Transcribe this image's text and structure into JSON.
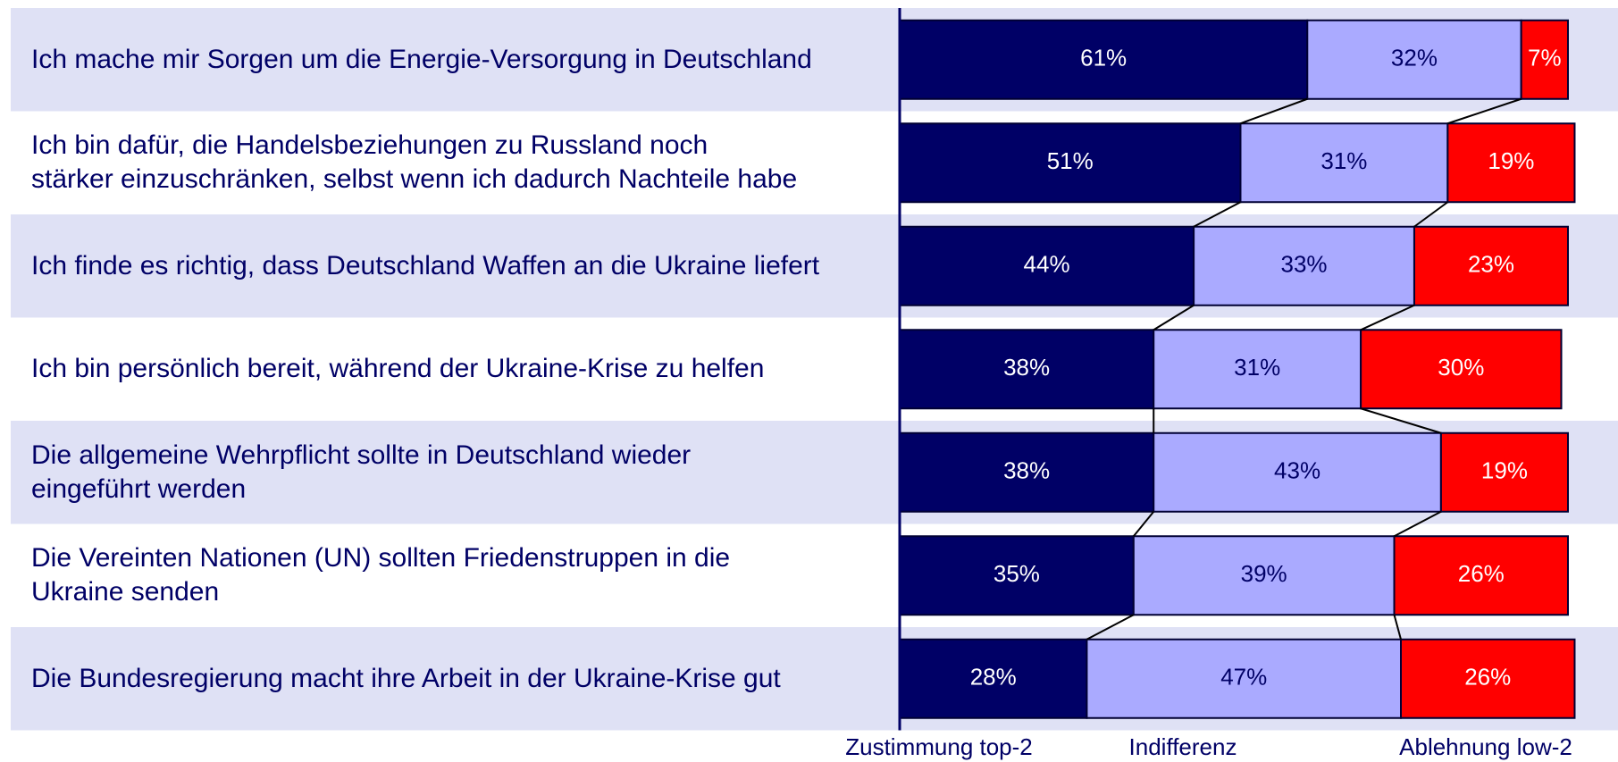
{
  "chart_data": {
    "type": "stacked-barh",
    "categories": [
      "Ich mache mir Sorgen um die Energie-Versorgung in Deutschland",
      "Ich bin dafür, die Handelsbeziehungen zu Russland noch\nstärker einzuschränken, selbst wenn ich dadurch Nachteile habe",
      "Ich finde es richtig, dass Deutschland Waffen an die Ukraine liefert",
      "Ich bin persönlich bereit, während der Ukraine-Krise zu helfen",
      "Die allgemeine Wehrpflicht sollte in Deutschland wieder\neingeführt werden",
      "Die Vereinten Nationen (UN) sollten Friedenstruppen in die\nUkraine senden",
      "Die Bundesregierung macht ihre Arbeit in der Ukraine-Krise gut"
    ],
    "series": [
      {
        "name": "Zustimmung top-2",
        "color": "#000066",
        "values": [
          61,
          51,
          44,
          38,
          38,
          35,
          28
        ],
        "value_labels": [
          "61%",
          "51%",
          "44%",
          "38%",
          "38%",
          "35%",
          "28%"
        ]
      },
      {
        "name": "Indifferenz",
        "color": "#aaaaff",
        "values": [
          32,
          31,
          33,
          31,
          43,
          39,
          47
        ],
        "value_labels": [
          "32%",
          "31%",
          "33%",
          "31%",
          "43%",
          "39%",
          "47%"
        ]
      },
      {
        "name": "Ablehnung low-2",
        "color": "#ff0000",
        "values": [
          7,
          19,
          23,
          30,
          19,
          26,
          26
        ],
        "value_labels": [
          "7%",
          "19%",
          "23%",
          "30%",
          "19%",
          "26%",
          "26%"
        ]
      }
    ],
    "xlim": [
      0,
      100
    ]
  }
}
